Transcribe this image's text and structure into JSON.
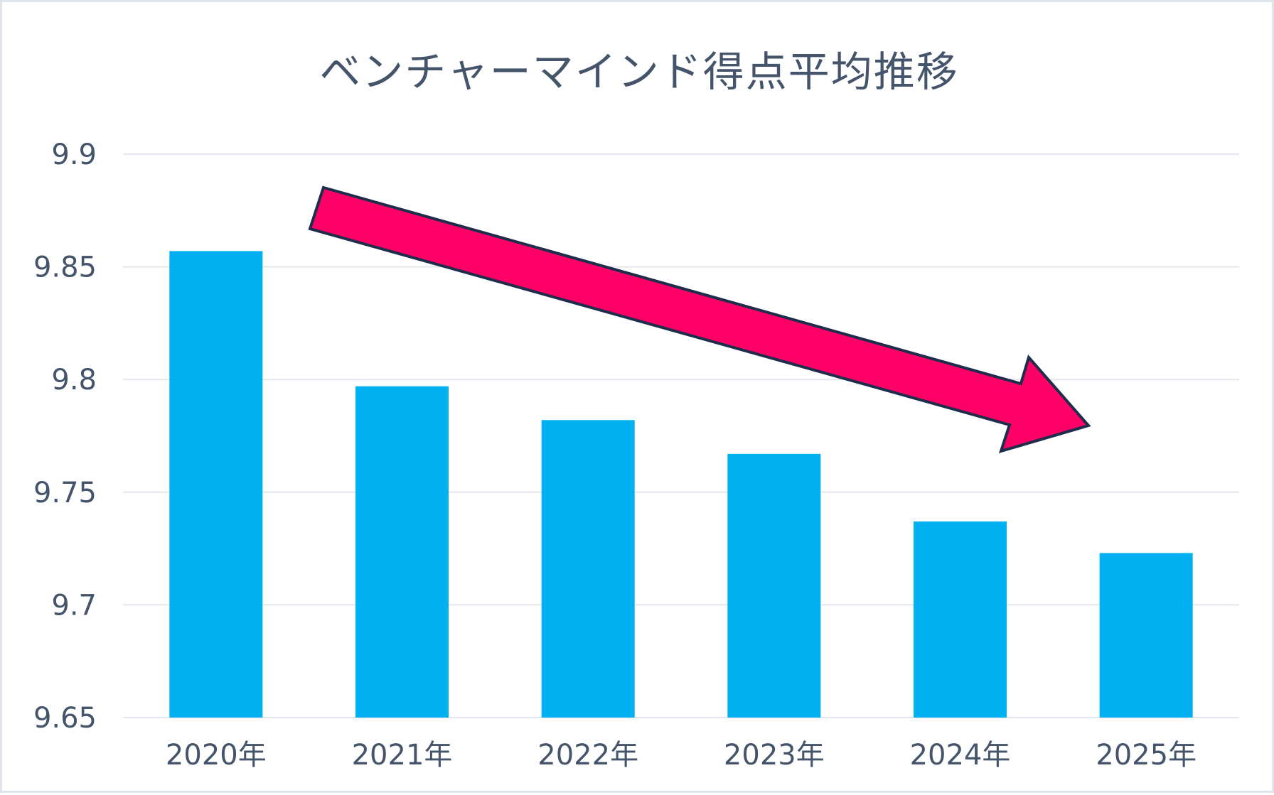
{
  "chart_data": {
    "type": "bar",
    "title": "ベンチャーマインド得点平均推移",
    "categories": [
      "2020年",
      "2021年",
      "2022年",
      "2023年",
      "2024年",
      "2025年"
    ],
    "values": [
      9.857,
      9.797,
      9.782,
      9.767,
      9.737,
      9.723
    ],
    "ylim": [
      9.65,
      9.9
    ],
    "yticks": [
      9.65,
      9.7,
      9.75,
      9.8,
      9.85,
      9.9
    ],
    "ytick_labels": [
      "9.65",
      "9.7",
      "9.75",
      "9.8",
      "9.85",
      "9.9"
    ],
    "grid": true,
    "bar_color": "#00b0f0",
    "annotation": {
      "type": "downward-trend-arrow",
      "color": "#ff0066",
      "outline": "#1f2d4d"
    }
  }
}
